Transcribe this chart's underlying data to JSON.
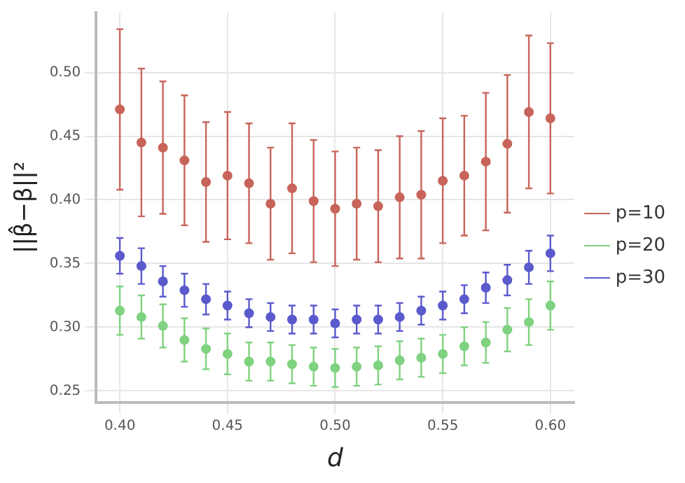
{
  "chart_data": {
    "type": "scatter",
    "xlabel": "d",
    "ylabel": "||β̂−β||²",
    "x": [
      0.4,
      0.41,
      0.42,
      0.43,
      0.44,
      0.45,
      0.46,
      0.47,
      0.48,
      0.49,
      0.5,
      0.51,
      0.52,
      0.53,
      0.54,
      0.55,
      0.56,
      0.57,
      0.58,
      0.59,
      0.6
    ],
    "series": [
      {
        "name": "p=10",
        "color": "#c8645a",
        "values": [
          0.471,
          0.445,
          0.441,
          0.431,
          0.414,
          0.419,
          0.413,
          0.397,
          0.409,
          0.399,
          0.393,
          0.397,
          0.395,
          0.402,
          0.404,
          0.415,
          0.419,
          0.43,
          0.444,
          0.469,
          0.464
        ],
        "errors": [
          0.063,
          0.058,
          0.052,
          0.051,
          0.047,
          0.05,
          0.047,
          0.044,
          0.051,
          0.048,
          0.045,
          0.044,
          0.044,
          0.048,
          0.05,
          0.049,
          0.047,
          0.054,
          0.054,
          0.06,
          0.059
        ]
      },
      {
        "name": "p=20",
        "color": "#7fd27f",
        "values": [
          0.313,
          0.308,
          0.301,
          0.29,
          0.283,
          0.279,
          0.273,
          0.273,
          0.271,
          0.269,
          0.268,
          0.269,
          0.27,
          0.274,
          0.276,
          0.279,
          0.285,
          0.288,
          0.298,
          0.304,
          0.317
        ],
        "errors": [
          0.019,
          0.017,
          0.017,
          0.017,
          0.016,
          0.016,
          0.015,
          0.015,
          0.015,
          0.015,
          0.015,
          0.015,
          0.015,
          0.015,
          0.015,
          0.015,
          0.015,
          0.016,
          0.017,
          0.018,
          0.019
        ]
      },
      {
        "name": "p=30",
        "color": "#5a5acd",
        "values": [
          0.356,
          0.348,
          0.336,
          0.329,
          0.322,
          0.317,
          0.311,
          0.308,
          0.306,
          0.306,
          0.303,
          0.306,
          0.306,
          0.308,
          0.313,
          0.317,
          0.322,
          0.331,
          0.337,
          0.347,
          0.358
        ],
        "errors": [
          0.014,
          0.014,
          0.012,
          0.013,
          0.012,
          0.011,
          0.011,
          0.011,
          0.011,
          0.011,
          0.011,
          0.011,
          0.011,
          0.011,
          0.011,
          0.011,
          0.011,
          0.012,
          0.012,
          0.013,
          0.014
        ]
      }
    ],
    "xlim": [
      0.389,
      0.611
    ],
    "xticks": [
      {
        "value": 0.4,
        "label": "0.40"
      },
      {
        "value": 0.45,
        "label": "0.45"
      },
      {
        "value": 0.5,
        "label": "0.50"
      },
      {
        "value": 0.55,
        "label": "0.55"
      },
      {
        "value": 0.6,
        "label": "0.60"
      }
    ],
    "ylim": [
      0.241,
      0.547
    ],
    "yticks": [
      {
        "value": 0.25,
        "label": "0.25"
      },
      {
        "value": 0.3,
        "label": "0.30"
      },
      {
        "value": 0.35,
        "label": "0.35"
      },
      {
        "value": 0.4,
        "label": "0.40"
      },
      {
        "value": 0.45,
        "label": "0.45"
      },
      {
        "value": 0.5,
        "label": "0.50"
      }
    ],
    "grid": true,
    "legend": "right",
    "marker": "circle"
  }
}
